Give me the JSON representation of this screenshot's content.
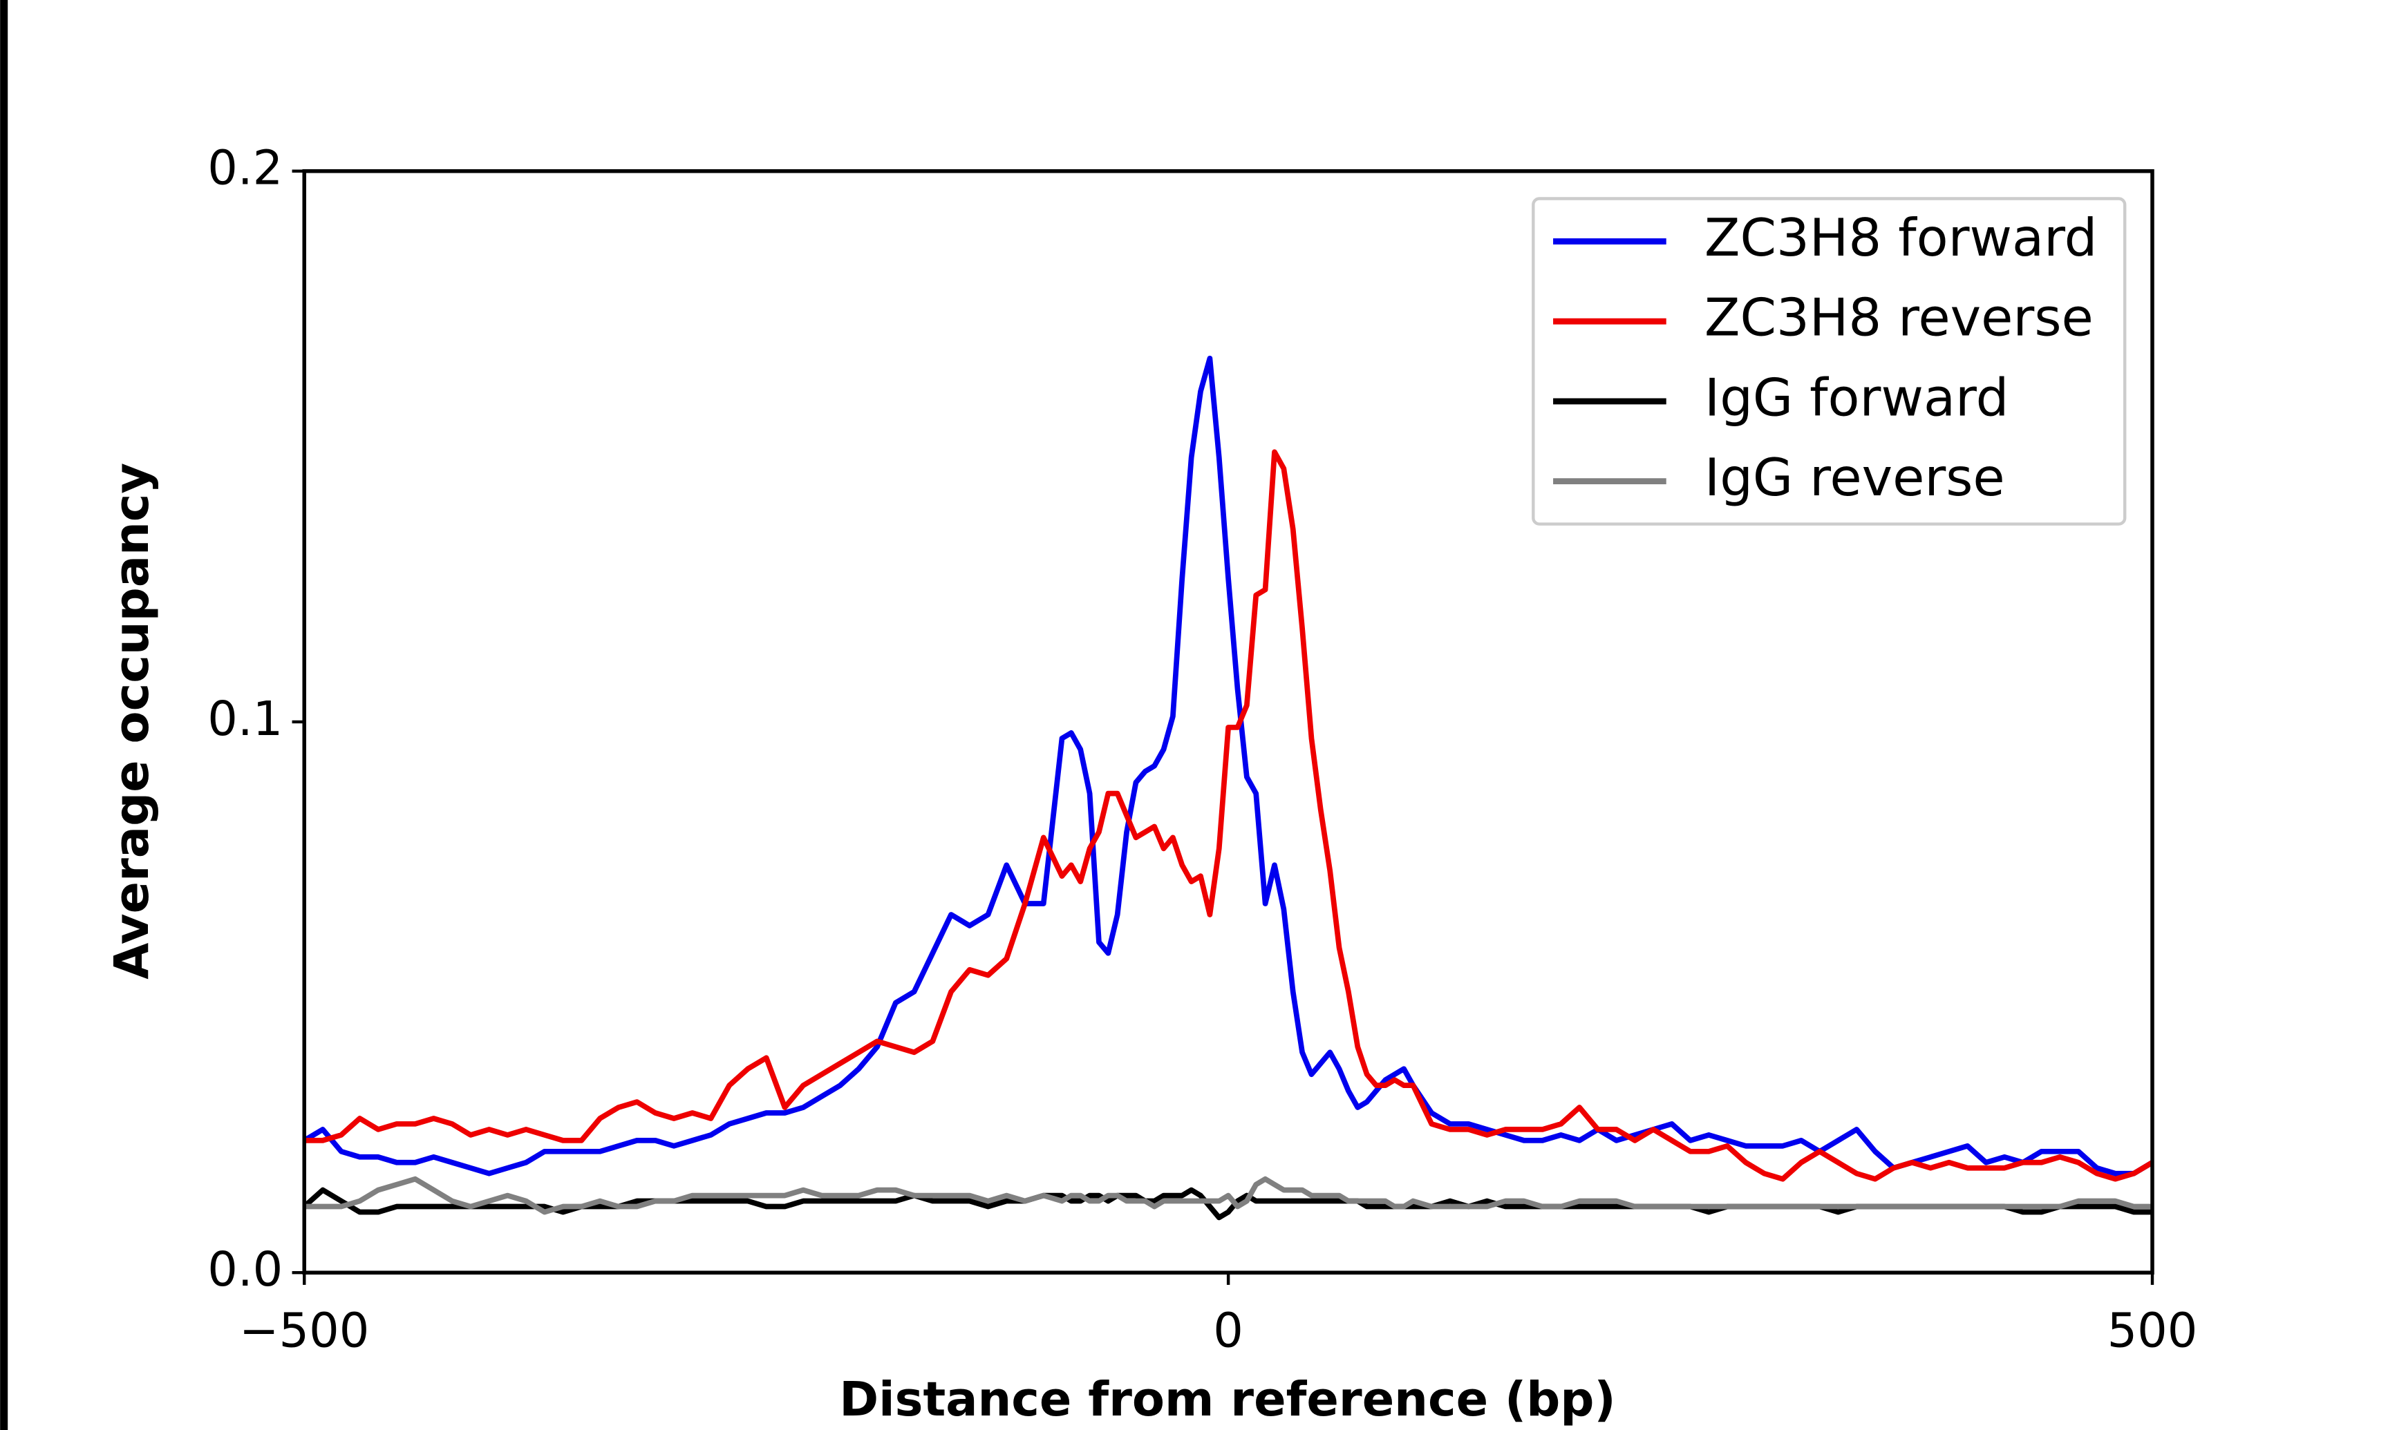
{
  "chart_data": {
    "type": "line",
    "xlabel": "Distance from reference (bp)",
    "ylabel": "Average occupancy",
    "xlim": [
      -500,
      500
    ],
    "ylim": [
      0,
      0.2
    ],
    "xticks": [
      {
        "value": -500,
        "label": "−500"
      },
      0,
      500
    ],
    "yticks": [
      {
        "value": 0,
        "label": "0.0"
      },
      0.1,
      0.2
    ],
    "legend": "upper right",
    "x": [
      -500,
      -490,
      -480,
      -470,
      -460,
      -450,
      -440,
      -430,
      -420,
      -410,
      -400,
      -390,
      -380,
      -370,
      -360,
      -350,
      -340,
      -330,
      -320,
      -310,
      -300,
      -290,
      -280,
      -270,
      -260,
      -250,
      -240,
      -230,
      -220,
      -210,
      -200,
      -190,
      -180,
      -170,
      -160,
      -150,
      -140,
      -130,
      -120,
      -110,
      -100,
      -90,
      -85,
      -80,
      -75,
      -70,
      -65,
      -60,
      -55,
      -50,
      -45,
      -40,
      -35,
      -30,
      -25,
      -20,
      -15,
      -10,
      -5,
      0,
      5,
      10,
      15,
      20,
      25,
      30,
      35,
      40,
      45,
      50,
      55,
      60,
      65,
      70,
      75,
      80,
      85,
      90,
      95,
      100,
      110,
      120,
      130,
      140,
      150,
      160,
      170,
      180,
      190,
      200,
      210,
      220,
      230,
      240,
      250,
      260,
      270,
      280,
      290,
      300,
      310,
      320,
      330,
      340,
      350,
      360,
      370,
      380,
      390,
      400,
      410,
      420,
      430,
      440,
      450,
      460,
      470,
      480,
      490,
      500
    ],
    "series": [
      {
        "name": "ZC3H8 forward",
        "color": "#0000ee",
        "values": [
          0.024,
          0.026,
          0.022,
          0.021,
          0.021,
          0.02,
          0.02,
          0.021,
          0.02,
          0.019,
          0.018,
          0.019,
          0.02,
          0.022,
          0.022,
          0.022,
          0.022,
          0.023,
          0.024,
          0.024,
          0.023,
          0.024,
          0.025,
          0.027,
          0.028,
          0.029,
          0.029,
          0.03,
          0.032,
          0.034,
          0.037,
          0.041,
          0.049,
          0.051,
          0.058,
          0.065,
          0.063,
          0.065,
          0.074,
          0.067,
          0.067,
          0.097,
          0.098,
          0.095,
          0.087,
          0.06,
          0.058,
          0.065,
          0.08,
          0.089,
          0.091,
          0.092,
          0.095,
          0.101,
          0.126,
          0.148,
          0.16,
          0.166,
          0.148,
          0.126,
          0.106,
          0.09,
          0.087,
          0.067,
          0.074,
          0.066,
          0.051,
          0.04,
          0.036,
          0.038,
          0.04,
          0.037,
          0.033,
          0.03,
          0.031,
          0.033,
          0.035,
          0.036,
          0.037,
          0.034,
          0.029,
          0.027,
          0.027,
          0.026,
          0.025,
          0.024,
          0.024,
          0.025,
          0.024,
          0.026,
          0.024,
          0.025,
          0.026,
          0.027,
          0.024,
          0.025,
          0.024,
          0.023,
          0.023,
          0.023,
          0.024,
          0.022,
          0.024,
          0.026,
          0.022,
          0.019,
          0.02,
          0.021,
          0.022,
          0.023,
          0.02,
          0.021,
          0.02,
          0.022,
          0.022,
          0.022,
          0.019,
          0.018,
          0.018,
          0.02
        ]
      },
      {
        "name": "ZC3H8 reverse",
        "color": "#ee0000",
        "values": [
          0.024,
          0.024,
          0.025,
          0.028,
          0.026,
          0.027,
          0.027,
          0.028,
          0.027,
          0.025,
          0.026,
          0.025,
          0.026,
          0.025,
          0.024,
          0.024,
          0.028,
          0.03,
          0.031,
          0.029,
          0.028,
          0.029,
          0.028,
          0.034,
          0.037,
          0.039,
          0.03,
          0.034,
          0.036,
          0.038,
          0.04,
          0.042,
          0.041,
          0.04,
          0.042,
          0.051,
          0.055,
          0.054,
          0.057,
          0.067,
          0.079,
          0.072,
          0.074,
          0.071,
          0.077,
          0.08,
          0.087,
          0.087,
          0.083,
          0.079,
          0.08,
          0.081,
          0.077,
          0.079,
          0.074,
          0.071,
          0.072,
          0.065,
          0.077,
          0.099,
          0.099,
          0.103,
          0.123,
          0.124,
          0.149,
          0.146,
          0.135,
          0.117,
          0.097,
          0.084,
          0.073,
          0.059,
          0.051,
          0.041,
          0.036,
          0.034,
          0.034,
          0.035,
          0.034,
          0.034,
          0.027,
          0.026,
          0.026,
          0.025,
          0.026,
          0.026,
          0.026,
          0.027,
          0.03,
          0.026,
          0.026,
          0.024,
          0.026,
          0.024,
          0.022,
          0.022,
          0.023,
          0.02,
          0.018,
          0.017,
          0.02,
          0.022,
          0.02,
          0.018,
          0.017,
          0.019,
          0.02,
          0.019,
          0.02,
          0.019,
          0.019,
          0.019,
          0.02,
          0.02,
          0.021,
          0.02,
          0.018,
          0.017,
          0.018,
          0.02
        ]
      },
      {
        "name": "IgG forward",
        "color": "#000000",
        "values": [
          0.012,
          0.015,
          0.013,
          0.011,
          0.011,
          0.012,
          0.012,
          0.012,
          0.012,
          0.012,
          0.012,
          0.012,
          0.012,
          0.012,
          0.011,
          0.012,
          0.012,
          0.012,
          0.013,
          0.013,
          0.013,
          0.013,
          0.013,
          0.013,
          0.013,
          0.012,
          0.012,
          0.013,
          0.013,
          0.013,
          0.013,
          0.013,
          0.013,
          0.014,
          0.013,
          0.013,
          0.013,
          0.012,
          0.013,
          0.013,
          0.014,
          0.014,
          0.013,
          0.013,
          0.014,
          0.014,
          0.013,
          0.014,
          0.014,
          0.014,
          0.013,
          0.013,
          0.014,
          0.014,
          0.014,
          0.015,
          0.014,
          0.012,
          0.01,
          0.011,
          0.013,
          0.014,
          0.013,
          0.013,
          0.013,
          0.013,
          0.013,
          0.013,
          0.013,
          0.013,
          0.013,
          0.013,
          0.013,
          0.013,
          0.012,
          0.012,
          0.012,
          0.012,
          0.012,
          0.012,
          0.012,
          0.013,
          0.012,
          0.013,
          0.012,
          0.012,
          0.012,
          0.012,
          0.012,
          0.012,
          0.012,
          0.012,
          0.012,
          0.012,
          0.012,
          0.011,
          0.012,
          0.012,
          0.012,
          0.012,
          0.012,
          0.012,
          0.011,
          0.012,
          0.012,
          0.012,
          0.012,
          0.012,
          0.012,
          0.012,
          0.012,
          0.012,
          0.011,
          0.011,
          0.012,
          0.012,
          0.012,
          0.012,
          0.011,
          0.011
        ]
      },
      {
        "name": "IgG reverse",
        "color": "#808080",
        "values": [
          0.012,
          0.012,
          0.012,
          0.013,
          0.015,
          0.016,
          0.017,
          0.015,
          0.013,
          0.012,
          0.013,
          0.014,
          0.013,
          0.011,
          0.012,
          0.012,
          0.013,
          0.012,
          0.012,
          0.013,
          0.013,
          0.014,
          0.014,
          0.014,
          0.014,
          0.014,
          0.014,
          0.015,
          0.014,
          0.014,
          0.014,
          0.015,
          0.015,
          0.014,
          0.014,
          0.014,
          0.014,
          0.013,
          0.014,
          0.013,
          0.014,
          0.013,
          0.014,
          0.014,
          0.013,
          0.013,
          0.014,
          0.014,
          0.013,
          0.013,
          0.013,
          0.012,
          0.013,
          0.013,
          0.013,
          0.013,
          0.013,
          0.013,
          0.013,
          0.014,
          0.012,
          0.013,
          0.016,
          0.017,
          0.016,
          0.015,
          0.015,
          0.015,
          0.014,
          0.014,
          0.014,
          0.014,
          0.013,
          0.013,
          0.013,
          0.013,
          0.013,
          0.012,
          0.012,
          0.013,
          0.012,
          0.012,
          0.012,
          0.012,
          0.013,
          0.013,
          0.012,
          0.012,
          0.013,
          0.013,
          0.013,
          0.012,
          0.012,
          0.012,
          0.012,
          0.012,
          0.012,
          0.012,
          0.012,
          0.012,
          0.012,
          0.012,
          0.012,
          0.012,
          0.012,
          0.012,
          0.012,
          0.012,
          0.012,
          0.012,
          0.012,
          0.012,
          0.012,
          0.012,
          0.012,
          0.013,
          0.013,
          0.013,
          0.012,
          0.012
        ]
      }
    ]
  }
}
